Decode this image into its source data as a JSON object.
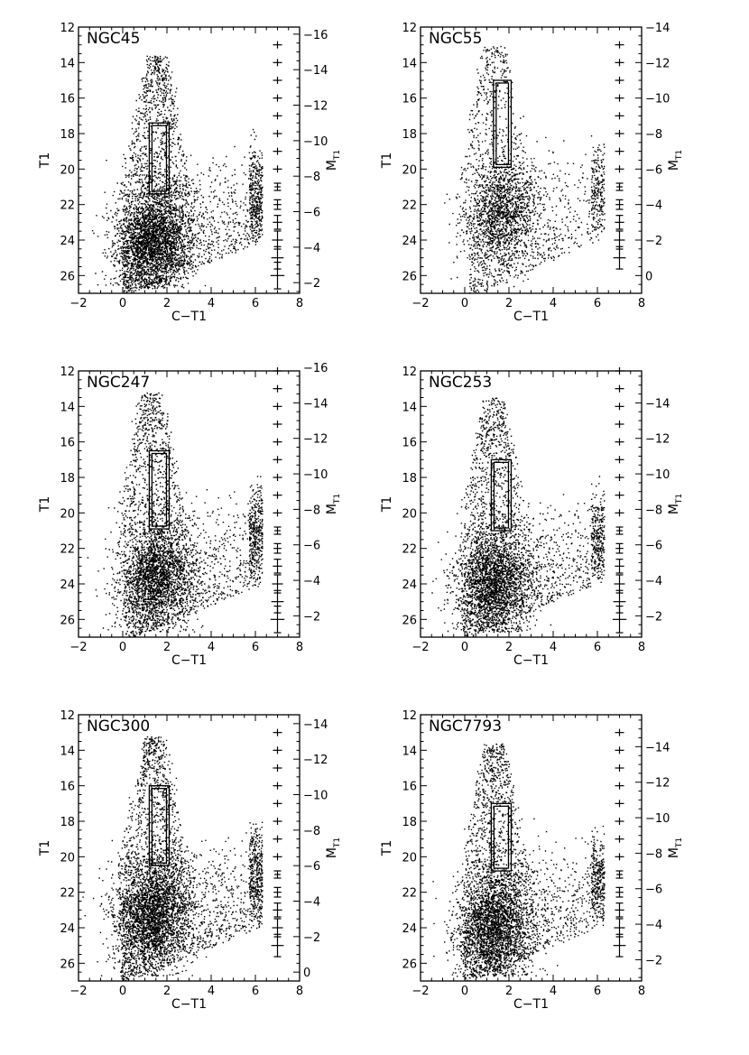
{
  "chart_data": [
    {
      "type": "scatter",
      "title": "NGC45",
      "xlabel": "C−T1",
      "ylabel": "T1",
      "y2label": "M",
      "y2label_sub": "T1",
      "xlim": [
        -2,
        8
      ],
      "ylim": [
        27,
        12
      ],
      "xticks": [
        -2,
        0,
        2,
        4,
        6,
        8
      ],
      "yticks": [
        12,
        14,
        16,
        18,
        20,
        22,
        24,
        26
      ],
      "y2ticks": [
        -16,
        -14,
        -12,
        -10,
        -8,
        -6,
        -4,
        -2
      ],
      "y2_offset": 28.4,
      "density": 1.0,
      "tip": [
        1.5,
        13.6
      ],
      "fan_slope": 2.3,
      "clump": [
        1.3,
        23.8
      ],
      "box": {
        "x": [
          1.2,
          2.1
        ],
        "y": [
          17.4,
          21.4
        ]
      },
      "errorbars": {
        "x": 7.0,
        "mags": [
          13,
          14,
          15,
          16,
          17,
          18,
          19,
          20,
          21,
          22,
          23,
          24,
          25,
          26
        ]
      }
    },
    {
      "type": "scatter",
      "title": "NGC55",
      "xlabel": "C−T1",
      "ylabel": "T1",
      "y2label": "M",
      "y2label_sub": "T1",
      "xlim": [
        -2,
        8
      ],
      "ylim": [
        27,
        12
      ],
      "xticks": [
        -2,
        0,
        2,
        4,
        6,
        8
      ],
      "yticks": [
        12,
        14,
        16,
        18,
        20,
        22,
        24,
        26
      ],
      "y2ticks": [
        -14,
        -12,
        -10,
        -8,
        -6,
        -4,
        -2,
        0
      ],
      "y2_offset": 26.0,
      "density": 0.55,
      "tip": [
        1.3,
        13.0
      ],
      "fan_slope": 2.0,
      "clump": [
        1.5,
        22.5
      ],
      "box": {
        "x": [
          1.3,
          2.1
        ],
        "y": [
          15.0,
          19.9
        ]
      },
      "errorbars": {
        "x": 7.0,
        "mags": [
          13,
          14,
          15,
          16,
          17,
          18,
          19,
          20,
          21,
          22,
          23,
          24,
          25
        ]
      }
    },
    {
      "type": "scatter",
      "title": "NGC247",
      "xlabel": "C−T1",
      "ylabel": "T1",
      "y2label": "M",
      "y2label_sub": "T1",
      "xlim": [
        -2,
        8
      ],
      "ylim": [
        27,
        12
      ],
      "xticks": [
        -2,
        0,
        2,
        4,
        6,
        8
      ],
      "yticks": [
        12,
        14,
        16,
        18,
        20,
        22,
        24,
        26
      ],
      "y2ticks": [
        -16,
        -14,
        -12,
        -10,
        -8,
        -6,
        -4,
        -2
      ],
      "y2_offset": 27.8,
      "density": 0.85,
      "tip": [
        1.3,
        13.2
      ],
      "fan_slope": 2.2,
      "clump": [
        1.4,
        23.5
      ],
      "box": {
        "x": [
          1.2,
          2.1
        ],
        "y": [
          16.5,
          20.9
        ]
      },
      "errorbars": {
        "x": 7.0,
        "mags": [
          12,
          13,
          14,
          15,
          16,
          17,
          18,
          19,
          20,
          21,
          22,
          23,
          24,
          25,
          26
        ]
      }
    },
    {
      "type": "scatter",
      "title": "NGC253",
      "xlabel": "C−T1",
      "ylabel": "T1",
      "y2label": "M",
      "y2label_sub": "T1",
      "xlim": [
        -2,
        8
      ],
      "ylim": [
        27,
        12
      ],
      "xticks": [
        -2,
        0,
        2,
        4,
        6,
        8
      ],
      "yticks": [
        12,
        14,
        16,
        18,
        20,
        22,
        24,
        26
      ],
      "y2ticks": [
        -14,
        -12,
        -10,
        -8,
        -6,
        -4,
        -2
      ],
      "y2_offset": 27.8,
      "density": 0.85,
      "tip": [
        1.3,
        13.5
      ],
      "fan_slope": 2.1,
      "clump": [
        1.2,
        23.8
      ],
      "box": {
        "x": [
          1.2,
          2.1
        ],
        "y": [
          17.0,
          21.0
        ]
      },
      "errorbars": {
        "x": 7.0,
        "mags": [
          12,
          13,
          14,
          15,
          16,
          17,
          18,
          19,
          20,
          21,
          22,
          23,
          24,
          25,
          26
        ]
      }
    },
    {
      "type": "scatter",
      "title": "NGC300",
      "xlabel": "C−T1",
      "ylabel": "T1",
      "y2label": "M",
      "y2label_sub": "T1",
      "xlim": [
        -2,
        8
      ],
      "ylim": [
        27,
        12
      ],
      "xticks": [
        -2,
        0,
        2,
        4,
        6,
        8
      ],
      "yticks": [
        12,
        14,
        16,
        18,
        20,
        22,
        24,
        26
      ],
      "y2ticks": [
        -14,
        -12,
        -10,
        -8,
        -6,
        -4,
        -2,
        0
      ],
      "y2_offset": 26.5,
      "density": 1.0,
      "tip": [
        1.4,
        13.2
      ],
      "fan_slope": 2.2,
      "clump": [
        1.2,
        23.2
      ],
      "box": {
        "x": [
          1.2,
          2.1
        ],
        "y": [
          16.0,
          20.5
        ]
      },
      "errorbars": {
        "x": 7.0,
        "mags": [
          13,
          14,
          15,
          16,
          17,
          18,
          19,
          20,
          21,
          22,
          23,
          24,
          25
        ]
      }
    },
    {
      "type": "scatter",
      "title": "NGC7793",
      "xlabel": "C−T1",
      "ylabel": "T1",
      "y2label": "M",
      "y2label_sub": "T1",
      "xlim": [
        -2,
        8
      ],
      "ylim": [
        27,
        12
      ],
      "xticks": [
        -2,
        0,
        2,
        4,
        6,
        8
      ],
      "yticks": [
        12,
        14,
        16,
        18,
        20,
        22,
        24,
        26
      ],
      "y2ticks": [
        -14,
        -12,
        -10,
        -8,
        -6,
        -4,
        -2
      ],
      "y2_offset": 27.8,
      "density": 0.9,
      "tip": [
        1.3,
        13.6
      ],
      "fan_slope": 2.1,
      "clump": [
        1.2,
        23.8
      ],
      "box": {
        "x": [
          1.2,
          2.1
        ],
        "y": [
          17.0,
          20.8
        ]
      },
      "errorbars": {
        "x": 7.0,
        "mags": [
          13,
          14,
          15,
          16,
          17,
          18,
          19,
          20,
          21,
          22,
          23,
          24,
          25
        ]
      }
    }
  ]
}
